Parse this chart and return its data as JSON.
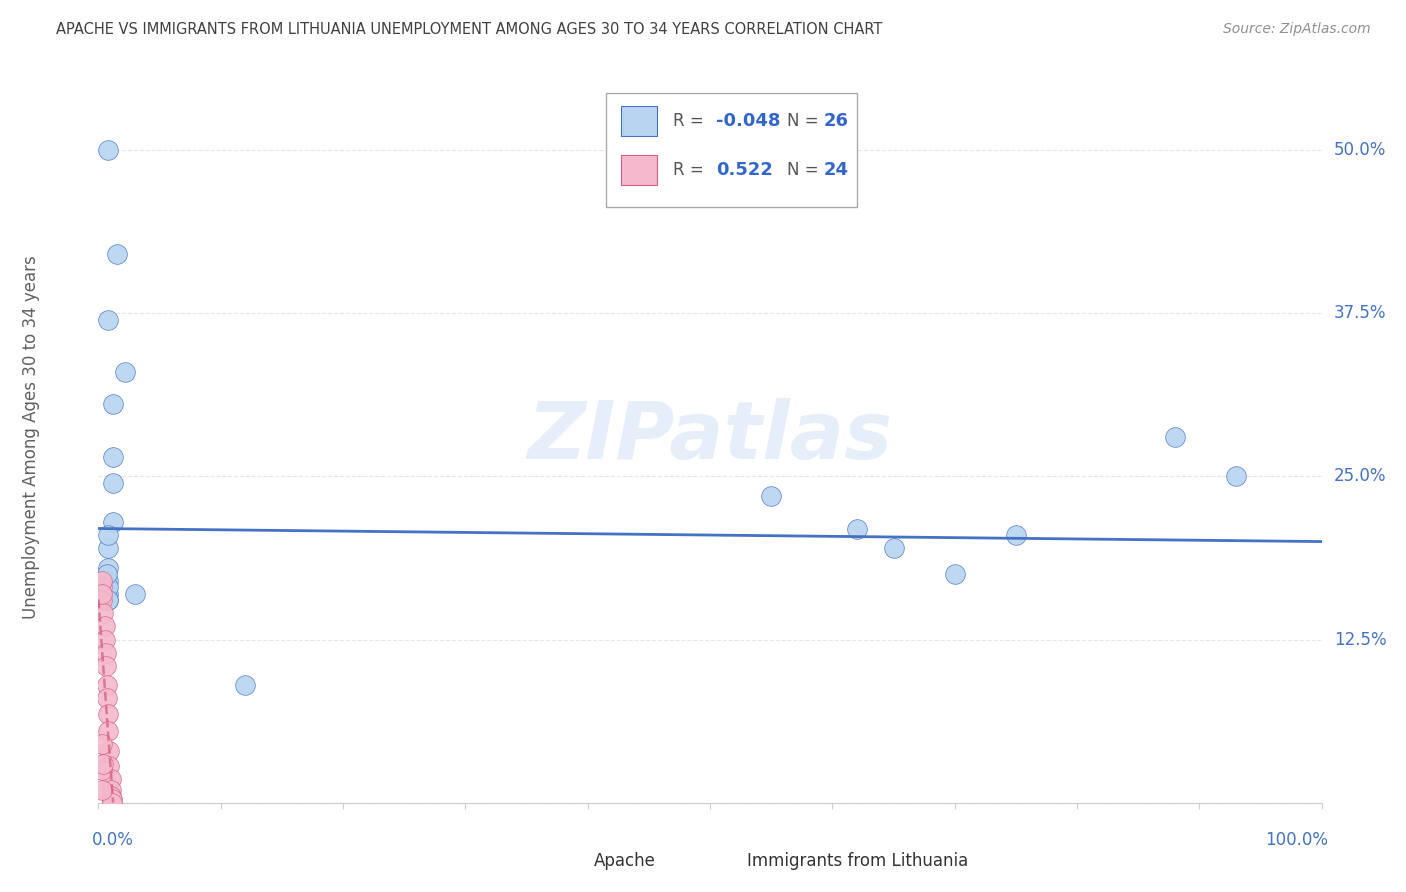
{
  "title": "APACHE VS IMMIGRANTS FROM LITHUANIA UNEMPLOYMENT AMONG AGES 30 TO 34 YEARS CORRELATION CHART",
  "source": "Source: ZipAtlas.com",
  "ylabel": "Unemployment Among Ages 30 to 34 years",
  "ytick_values": [
    0,
    0.125,
    0.25,
    0.375,
    0.5
  ],
  "ytick_labels": [
    "",
    "12.5%",
    "25.0%",
    "37.5%",
    "50.0%"
  ],
  "xlim": [
    0,
    1.0
  ],
  "ylim": [
    0,
    0.56
  ],
  "apache_color": "#b8d4f0",
  "lithuania_color": "#f5b8cc",
  "apache_line_color": "#4472c4",
  "lithuania_line_color": "#d06080",
  "watermark": "ZIPatlas",
  "background_color": "#ffffff",
  "grid_color": "#e0e0e0",
  "title_color": "#404040",
  "tick_color": "#4472c4",
  "apache_x": [
    0.008,
    0.015,
    0.022,
    0.008,
    0.012,
    0.012,
    0.012,
    0.012,
    0.008,
    0.008,
    0.008,
    0.008,
    0.008,
    0.008,
    0.008,
    0.03,
    0.12,
    0.55,
    0.62,
    0.65,
    0.7,
    0.75,
    0.88,
    0.93,
    0.007,
    0.008
  ],
  "apache_y": [
    0.5,
    0.42,
    0.33,
    0.37,
    0.305,
    0.265,
    0.245,
    0.215,
    0.195,
    0.18,
    0.17,
    0.16,
    0.155,
    0.165,
    0.155,
    0.16,
    0.09,
    0.235,
    0.21,
    0.195,
    0.175,
    0.205,
    0.28,
    0.25,
    0.175,
    0.205
  ],
  "lithuania_x": [
    0.003,
    0.003,
    0.004,
    0.005,
    0.005,
    0.006,
    0.006,
    0.007,
    0.007,
    0.008,
    0.008,
    0.009,
    0.009,
    0.01,
    0.01,
    0.01,
    0.011,
    0.011,
    0.003,
    0.003,
    0.003,
    0.003,
    0.003,
    0.004
  ],
  "lithuania_y": [
    0.165,
    0.155,
    0.145,
    0.135,
    0.125,
    0.115,
    0.105,
    0.09,
    0.08,
    0.068,
    0.055,
    0.04,
    0.028,
    0.018,
    0.01,
    0.005,
    0.003,
    0.0,
    0.17,
    0.16,
    0.045,
    0.025,
    0.01,
    0.03
  ]
}
